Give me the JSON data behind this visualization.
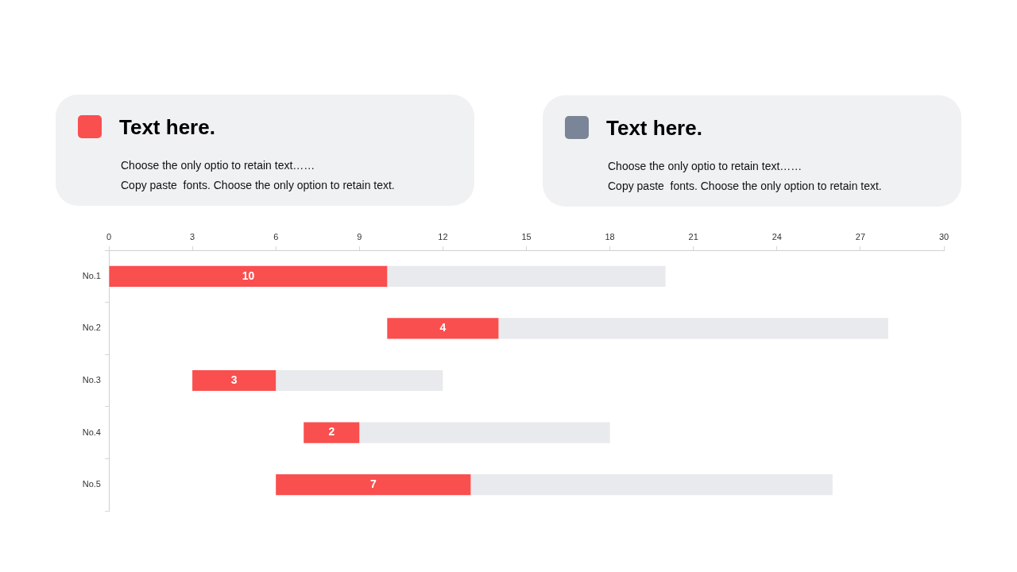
{
  "chart_data": [
    {
      "type": "other",
      "title": "Text here.",
      "annotations": [
        "Choose the only optio to retain text……",
        "Copy paste  fonts. Choose the only option to retain text."
      ]
    },
    {
      "type": "other",
      "title": "Text here.",
      "annotations": [
        "Choose the only optio to retain text……",
        "Copy paste  fonts. Choose the only option to retain text."
      ]
    },
    {
      "type": "bar",
      "orientation": "horizontal",
      "categories": [
        "No.1",
        "No.2",
        "No.3",
        "No.4",
        "No.5"
      ],
      "series": [
        {
          "color": "#f94f4f",
          "base": [
            0,
            10,
            3,
            7,
            6
          ],
          "values": [
            10,
            4,
            3,
            2,
            7
          ],
          "value_labels": [
            "10",
            "4",
            "3",
            "2",
            "7"
          ]
        },
        {
          "color": "#e9eaed",
          "base": [
            10,
            14,
            6,
            9,
            13
          ],
          "values": [
            10,
            14,
            6,
            9,
            13
          ]
        }
      ],
      "xlim": [
        0,
        30
      ],
      "xticks": [
        0,
        3,
        6,
        9,
        12,
        15,
        18,
        21,
        24,
        27,
        30
      ],
      "grid": false,
      "legend": false
    }
  ]
}
